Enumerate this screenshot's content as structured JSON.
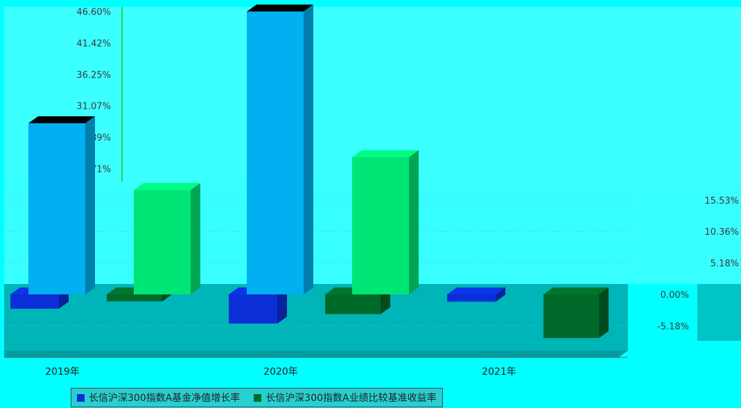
{
  "title": "",
  "chart_data": {
    "type": "bar",
    "categories": [
      "2019年",
      "2020年",
      "2021年"
    ],
    "series": [
      {
        "name": "长信沪深300指数A基金净值增长率",
        "color": "#0a2fd6",
        "values": [
          -2.36,
          -4.8,
          -1.2
        ]
      },
      {
        "name": "长信沪深300指数A基金净值增长率 (3D)",
        "color": "#00b0f0",
        "values": [
          28.2,
          46.6,
          0.0
        ],
        "legend": false
      },
      {
        "name": "长信沪深300指数A业绩比较基准收益率",
        "color": "#006a2a",
        "values": [
          -1.15,
          -3.25,
          -7.19
        ]
      },
      {
        "name": "长信沪深300指数A业绩比较基准收益率 (3D)",
        "color": "#00e676",
        "values": [
          17.2,
          22.6,
          0.0
        ],
        "legend": false
      }
    ],
    "y_ticks": [
      "-5.18%",
      "0.00%",
      "5.18%",
      "10.36%",
      "15.53%",
      "20.71%",
      "25.89%",
      "31.07%",
      "36.25%",
      "41.42%",
      "46.60%"
    ],
    "ylim": [
      -7.5,
      50
    ],
    "grid": true,
    "legend": "bottom"
  },
  "legend": {
    "item1": "长信沪深300指数A基金净值增长率",
    "item2": "长信沪深300指数A业绩比较基准收益率"
  }
}
